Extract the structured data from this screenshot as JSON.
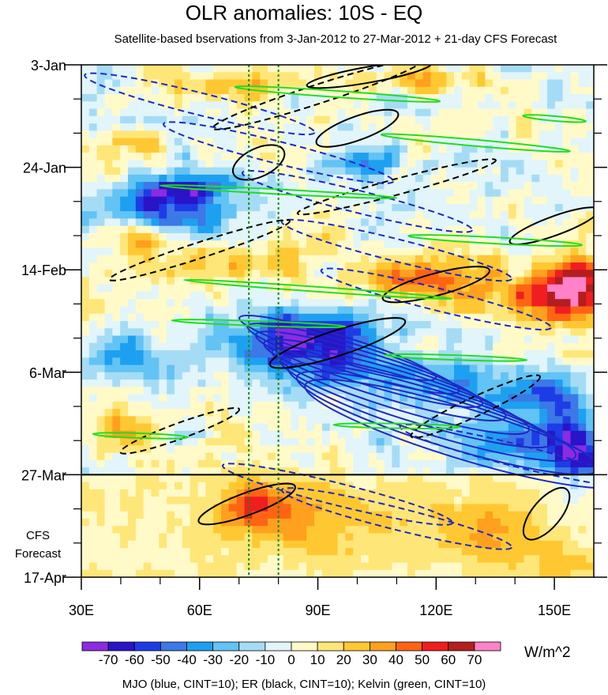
{
  "chart_data": {
    "type": "heatmap",
    "title": "OLR anomalies: 10S - EQ",
    "subtitle": "Satellite-based bservations from 3-Jan-2012 to 27-Mar-2012 + 21-day CFS Forecast",
    "x_ticks": [
      30,
      60,
      90,
      120,
      150
    ],
    "x_tick_labels": [
      "30E",
      "60E",
      "90E",
      "120E",
      "150E"
    ],
    "xlim": [
      30,
      160
    ],
    "y_ticks": [
      "3-Jan",
      "24-Jan",
      "14-Feb",
      "6-Mar",
      "27-Mar",
      "17-Apr"
    ],
    "y_tick_days": [
      0,
      21,
      42,
      63,
      84,
      105
    ],
    "ylim": [
      0,
      105
    ],
    "forecast_start_day": 84,
    "forecast_label_lines": [
      "CFS",
      "Forecast"
    ],
    "reference_lines_lon": [
      72.5,
      80
    ],
    "colorbar": {
      "levels": [
        -70,
        -60,
        -50,
        -40,
        -30,
        -20,
        -10,
        0,
        10,
        20,
        30,
        40,
        50,
        60,
        70
      ],
      "labels": [
        "-70",
        "-60",
        "-50",
        "-40",
        "-30",
        "-20",
        "-10",
        "0",
        "10",
        "20",
        "30",
        "40",
        "50",
        "60",
        "70"
      ],
      "colors": [
        "#8b2be2",
        "#2a14c8",
        "#1e3ce6",
        "#3c78e6",
        "#1ea0f0",
        "#62c3f5",
        "#a5dcf5",
        "#e1f5fa",
        "#fffac8",
        "#ffe678",
        "#ffc832",
        "#ffa01e",
        "#ff6414",
        "#f01e1e",
        "#b41e1e",
        "#ff82c8"
      ],
      "units": "W/m^2"
    },
    "contours": {
      "mjo_color": "#1e28c8",
      "er_color": "#000000",
      "kelvin_color": "#22dd22"
    },
    "footer": "MJO (blue, CINT=10); ER (black, CINT=10); Kelvin (green, CINT=10)"
  }
}
